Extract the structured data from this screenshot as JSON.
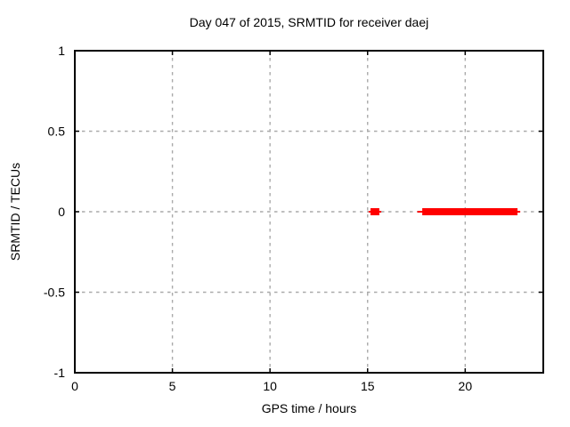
{
  "chart_data": {
    "type": "scatter",
    "title": "Day 047 of 2015, SRMTID for receiver daej",
    "xlabel": "GPS time / hours",
    "ylabel": "SRMTID / TECUs",
    "xlim": [
      0,
      24
    ],
    "ylim": [
      -1,
      1
    ],
    "xticks": [
      {
        "value": 0,
        "label": "0"
      },
      {
        "value": 5,
        "label": "5"
      },
      {
        "value": 10,
        "label": "10"
      },
      {
        "value": 15,
        "label": "15"
      },
      {
        "value": 20,
        "label": "20"
      }
    ],
    "yticks": [
      {
        "value": 1,
        "label": "1"
      },
      {
        "value": 0.5,
        "label": "0.5"
      },
      {
        "value": 0,
        "label": "0"
      },
      {
        "value": -0.5,
        "label": "-0.5"
      },
      {
        "value": -1,
        "label": "-1"
      }
    ],
    "grid": true,
    "legend": "none",
    "colors": {
      "data": "#ff0000",
      "grid": "#aaaaaa",
      "axis": "#000000",
      "background": "#ffffff"
    },
    "series": [
      {
        "name": "SRMTID",
        "marker": "filled-square",
        "color": "#ff0000",
        "y": 0,
        "segments": [
          {
            "x_start": 15.05,
            "x_end": 15.7,
            "core_start": 15.15,
            "core_end": 15.6
          },
          {
            "x_start": 17.55,
            "x_end": 22.82,
            "core_start": 17.8,
            "core_end": 22.68
          }
        ]
      }
    ]
  }
}
